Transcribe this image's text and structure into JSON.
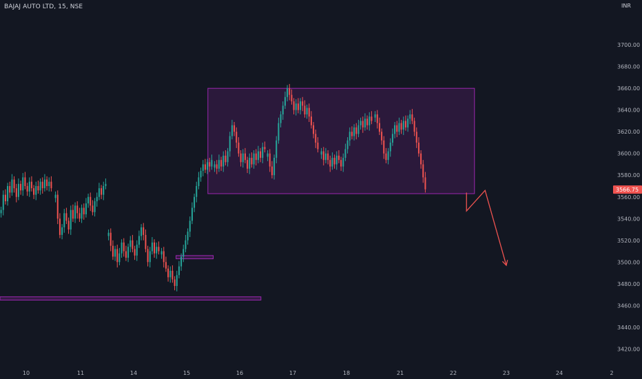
{
  "header": {
    "symbol_title": "BAJAJ AUTO LTD, 15, NSE",
    "currency": "INR"
  },
  "colors": {
    "background": "#131722",
    "up": "#26a69a",
    "down": "#ef5350",
    "zone": "#9c27b0",
    "axis_text": "#b2b5be",
    "price_tag": "#ef5350"
  },
  "chart_data": {
    "type": "candlestick",
    "title": "BAJAJ AUTO LTD, 15, NSE",
    "ylim": [
      3405,
      3735
    ],
    "y_ticks": [
      3420,
      3440,
      3460,
      3480,
      3500,
      3520,
      3540,
      3560,
      3580,
      3600,
      3620,
      3640,
      3660,
      3680,
      3700
    ],
    "x_ticks": [
      "10",
      "11",
      "14",
      "15",
      "16",
      "17",
      "18",
      "21",
      "22",
      "23",
      "24",
      "2"
    ],
    "last_price": "3566.75",
    "grid": false,
    "sessions": [
      {
        "day": "10",
        "points": [
          3548,
          3562,
          3556,
          3570,
          3564,
          3576,
          3568,
          3560,
          3572,
          3566,
          3578,
          3570,
          3565,
          3574,
          3568,
          3562,
          3570,
          3566,
          3574,
          3568,
          3576,
          3570,
          3574,
          3568
        ]
      },
      {
        "day": "11",
        "points": [
          3562,
          3540,
          3525,
          3532,
          3545,
          3538,
          3530,
          3548,
          3540,
          3552,
          3545,
          3540,
          3550,
          3544,
          3554,
          3560,
          3552,
          3546,
          3556,
          3560,
          3568,
          3562,
          3570,
          3572
        ]
      },
      {
        "day": "14",
        "points": [
          3527,
          3515,
          3505,
          3512,
          3500,
          3508,
          3518,
          3510,
          3504,
          3514,
          3520,
          3512,
          3506,
          3516,
          3524,
          3532,
          3525,
          3512,
          3500,
          3510,
          3518,
          3508,
          3514,
          3510
        ]
      },
      {
        "day": "15",
        "points": [
          3510,
          3500,
          3494,
          3486,
          3492,
          3484,
          3478,
          3488,
          3496,
          3505,
          3512,
          3520,
          3528,
          3538,
          3550,
          3560,
          3570,
          3578,
          3584,
          3590,
          3585,
          3592,
          3588,
          3594
        ]
      },
      {
        "day": "16",
        "points": [
          3590,
          3586,
          3594,
          3588,
          3598,
          3592,
          3602,
          3616,
          3626,
          3620,
          3610,
          3600,
          3592,
          3600,
          3594,
          3586,
          3596,
          3590,
          3600,
          3594,
          3602,
          3596,
          3606,
          3604
        ]
      },
      {
        "day": "17",
        "points": [
          3600,
          3588,
          3580,
          3596,
          3612,
          3628,
          3636,
          3644,
          3652,
          3660,
          3654,
          3648,
          3640,
          3646,
          3640,
          3648,
          3644,
          3636,
          3642,
          3634,
          3626,
          3618,
          3610,
          3604
        ]
      },
      {
        "day": "18",
        "points": [
          3602,
          3594,
          3600,
          3594,
          3588,
          3596,
          3590,
          3598,
          3594,
          3588,
          3596,
          3604,
          3612,
          3620,
          3616,
          3624,
          3618,
          3626,
          3630,
          3624,
          3632,
          3626,
          3634,
          3630
        ]
      },
      {
        "day": "21",
        "points": [
          3636,
          3628,
          3620,
          3612,
          3600,
          3594,
          3602,
          3610,
          3618,
          3626,
          3620,
          3628,
          3622,
          3630,
          3624,
          3632,
          3636,
          3630,
          3620,
          3610,
          3600,
          3590,
          3578,
          3567
        ]
      }
    ],
    "annotations": [
      {
        "type": "rectangle",
        "name": "consolidation-zone",
        "x_from": "15.4",
        "x_to": "22.4",
        "y_from": 3563,
        "y_to": 3660
      },
      {
        "type": "rectangle",
        "name": "mid-level-zone",
        "x_from": "14.8",
        "x_to": "15.5",
        "y_from": 3503,
        "y_to": 3506
      },
      {
        "type": "rectangle",
        "name": "support-zone",
        "x_from": "9.6",
        "x_to": "16.4",
        "y_from": 3465,
        "y_to": 3468
      },
      {
        "type": "projection",
        "name": "projected-path",
        "points": [
          {
            "day": 22.25,
            "price": 3564
          },
          {
            "day": 22.25,
            "price": 3547
          },
          {
            "day": 22.6,
            "price": 3566
          },
          {
            "day": 23.0,
            "price": 3497
          }
        ]
      }
    ]
  }
}
